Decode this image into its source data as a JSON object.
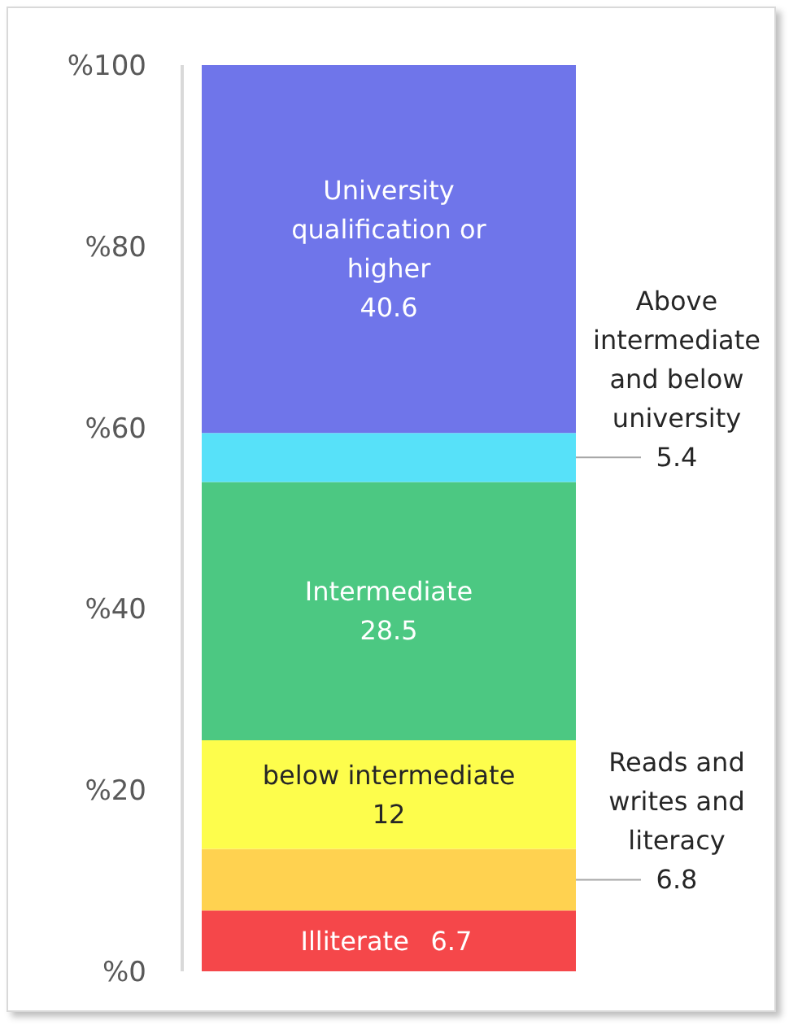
{
  "chart_data": {
    "type": "bar",
    "stacked": true,
    "categories": [
      null
    ],
    "series": [
      {
        "name": "Illiterate",
        "color": "#f5474a",
        "values": [
          6.7
        ],
        "value_labels": [
          "6.7"
        ]
      },
      {
        "name": "Reads and writes and literacy",
        "color": "#ffd250",
        "values": [
          6.8
        ],
        "value_labels": [
          "6.8"
        ]
      },
      {
        "name": "below intermediate",
        "color": "#fdfd4c",
        "values": [
          12
        ],
        "value_labels": [
          "12"
        ]
      },
      {
        "name": "Intermediate",
        "color": "#4cc882",
        "values": [
          28.5
        ],
        "value_labels": [
          "28.5"
        ]
      },
      {
        "name": "Above intermediate and below university",
        "color": "#57e1f9",
        "values": [
          5.4
        ],
        "value_labels": [
          "5.4"
        ]
      },
      {
        "name": "University qualification or higher",
        "color": "#6f75ea",
        "values": [
          40.6
        ],
        "value_labels": [
          "40.6"
        ]
      }
    ],
    "ylim": [
      0,
      100
    ],
    "yticks": [
      {
        "value": 0,
        "label": "%0"
      },
      {
        "value": 20,
        "label": "%20"
      },
      {
        "value": 40,
        "label": "%40"
      },
      {
        "value": 60,
        "label": "%60"
      },
      {
        "value": 80,
        "label": "%80"
      },
      {
        "value": 100,
        "label": "%100"
      }
    ],
    "tick_labels": "y",
    "grid": false,
    "legend": false
  }
}
